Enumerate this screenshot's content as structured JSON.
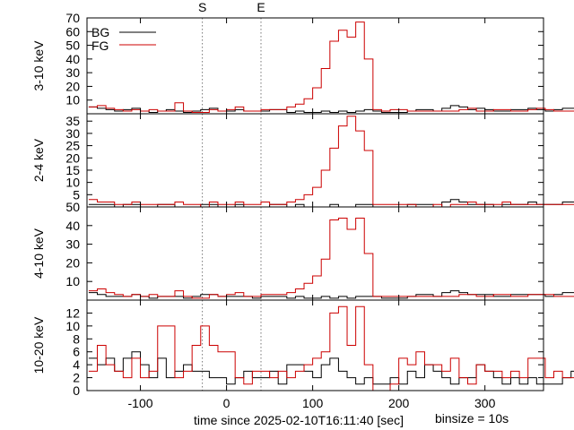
{
  "markers": [
    {
      "label": "S",
      "t": -28
    },
    {
      "label": "E",
      "t": 40
    }
  ],
  "x_axis": {
    "label": "time since 2025-02-10T16:11:40 [sec]",
    "range": [
      -162,
      368
    ],
    "ticks": [
      -100,
      0,
      100,
      200,
      300
    ],
    "tick_labels": [
      "-100",
      "0",
      "100",
      "200",
      "300"
    ]
  },
  "binsize_label": "binsize = 10s",
  "legend": {
    "placement": "top-left",
    "entries": [
      {
        "name": "BG",
        "color": "#000000"
      },
      {
        "name": "FG",
        "color": "#cc0000"
      }
    ]
  },
  "colors": {
    "BG": "#000000",
    "FG": "#cc0000",
    "marker_line": "#555555"
  },
  "chart_data": [
    {
      "type": "line",
      "ylabel": "3-10 keV",
      "ylim": [
        0,
        70
      ],
      "yticks": [
        10,
        20,
        30,
        40,
        50,
        60,
        70
      ],
      "bins": {
        "start": -160,
        "width": 10
      },
      "series": [
        {
          "name": "FG",
          "values": [
            5,
            6,
            4,
            3,
            2,
            3,
            2,
            3,
            2,
            2,
            8,
            2,
            1,
            1,
            3,
            2,
            3,
            5,
            2,
            2,
            3,
            3,
            3,
            5,
            7,
            11,
            19,
            33,
            53,
            61,
            56,
            67,
            40,
            3,
            2,
            3,
            3,
            2,
            2,
            2,
            2,
            2,
            2,
            3,
            4,
            2,
            2,
            3,
            3,
            2,
            2,
            3,
            4,
            3,
            2,
            2,
            2,
            1,
            2,
            1,
            1
          ]
        },
        {
          "name": "BG",
          "values": [
            5,
            4,
            3,
            2,
            3,
            4,
            2,
            1,
            2,
            3,
            2,
            1,
            2,
            3,
            4,
            2,
            2,
            3,
            2,
            2,
            2,
            3,
            3,
            1,
            2,
            1,
            1,
            2,
            1,
            2,
            1,
            2,
            3,
            2,
            1,
            1,
            1,
            2,
            3,
            3,
            2,
            4,
            6,
            5,
            3,
            4,
            3,
            2,
            2,
            3,
            3,
            4,
            3,
            2,
            3,
            4,
            4,
            6,
            5,
            1,
            1
          ]
        }
      ]
    },
    {
      "type": "line",
      "ylabel": "2-4 keV",
      "ylim": [
        0,
        38
      ],
      "yticks": [
        5,
        10,
        15,
        20,
        25,
        30,
        35
      ],
      "bins": {
        "start": -160,
        "width": 10
      },
      "series": [
        {
          "name": "FG",
          "values": [
            3,
            2,
            2,
            1,
            1,
            2,
            1,
            1,
            1,
            1,
            2,
            1,
            1,
            0,
            2,
            1,
            1,
            2,
            1,
            1,
            2,
            1,
            1,
            2,
            3,
            5,
            8,
            15,
            24,
            33,
            37,
            31,
            23,
            1,
            1,
            1,
            1,
            1,
            0,
            0,
            1,
            0,
            1,
            1,
            2,
            1,
            1,
            1,
            2,
            1,
            1,
            1,
            1,
            1,
            1,
            1,
            1,
            0,
            0,
            0,
            1
          ]
        },
        {
          "name": "BG",
          "values": [
            1,
            1,
            1,
            0,
            1,
            1,
            0,
            0,
            1,
            1,
            0,
            0,
            0,
            1,
            1,
            0,
            0,
            1,
            0,
            0,
            0,
            1,
            1,
            0,
            1,
            0,
            0,
            0,
            1,
            0,
            0,
            1,
            1,
            0,
            0,
            0,
            0,
            1,
            1,
            1,
            0,
            2,
            3,
            2,
            1,
            1,
            1,
            0,
            1,
            1,
            1,
            2,
            1,
            1,
            1,
            2,
            2,
            3,
            2,
            0,
            0
          ]
        }
      ]
    },
    {
      "type": "line",
      "ylabel": "4-10 keV",
      "ylim": [
        0,
        50
      ],
      "yticks": [
        10,
        20,
        30,
        40,
        50
      ],
      "bins": {
        "start": -160,
        "width": 10
      },
      "series": [
        {
          "name": "FG",
          "values": [
            5,
            6,
            4,
            3,
            2,
            3,
            2,
            3,
            2,
            2,
            5,
            2,
            1,
            1,
            3,
            2,
            3,
            4,
            2,
            2,
            3,
            3,
            3,
            4,
            6,
            9,
            13,
            22,
            43,
            44,
            38,
            44,
            25,
            2,
            2,
            2,
            2,
            2,
            2,
            2,
            2,
            2,
            2,
            3,
            3,
            2,
            2,
            3,
            3,
            2,
            2,
            3,
            3,
            3,
            2,
            2,
            2,
            1,
            2,
            1,
            1
          ]
        },
        {
          "name": "BG",
          "values": [
            4,
            3,
            2,
            2,
            2,
            3,
            2,
            1,
            2,
            2,
            2,
            1,
            2,
            3,
            3,
            2,
            2,
            2,
            2,
            1,
            2,
            2,
            2,
            1,
            2,
            1,
            1,
            2,
            1,
            2,
            1,
            2,
            2,
            2,
            1,
            1,
            1,
            2,
            3,
            3,
            2,
            4,
            5,
            4,
            3,
            3,
            3,
            2,
            2,
            3,
            3,
            3,
            3,
            2,
            3,
            4,
            4,
            5,
            4,
            1,
            1
          ]
        }
      ]
    },
    {
      "type": "line",
      "ylabel": "10-20 keV",
      "ylim": [
        0,
        14
      ],
      "yticks": [
        0,
        2,
        4,
        6,
        8,
        10,
        12
      ],
      "bins": {
        "start": -160,
        "width": 10
      },
      "series": [
        {
          "name": "FG",
          "values": [
            3,
            7,
            4,
            3,
            2,
            5,
            2,
            3,
            10,
            10,
            2,
            3,
            7,
            10,
            7,
            6,
            6,
            2,
            1,
            3,
            3,
            2,
            3,
            2,
            3,
            4,
            5,
            6,
            12,
            13,
            7,
            13,
            4,
            0,
            0,
            1,
            5,
            4,
            6,
            4,
            4,
            3,
            5,
            2,
            1,
            4,
            3,
            3,
            2,
            3,
            2,
            5,
            5,
            2,
            3,
            2,
            2,
            1,
            2,
            0,
            1
          ]
        },
        {
          "name": "BG",
          "values": [
            5,
            4,
            5,
            3,
            5,
            6,
            4,
            2,
            5,
            2,
            3,
            4,
            3,
            3,
            2,
            2,
            1,
            2,
            3,
            2,
            2,
            3,
            1,
            4,
            4,
            3,
            2,
            4,
            5,
            3,
            2,
            1,
            2,
            1,
            1,
            2,
            1,
            3,
            2,
            4,
            3,
            2,
            1,
            2,
            2,
            4,
            3,
            2,
            1,
            2,
            1,
            2,
            1,
            1,
            1,
            2,
            3,
            1,
            2,
            1,
            1
          ]
        }
      ]
    }
  ]
}
